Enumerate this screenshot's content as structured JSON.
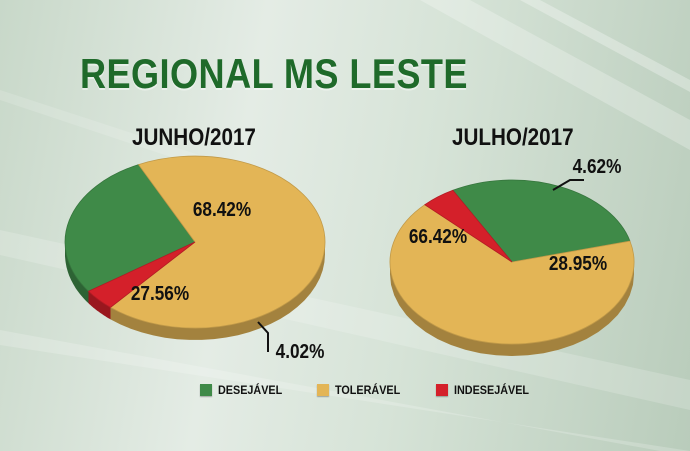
{
  "title": "REGIONAL MS LESTE",
  "colors": {
    "desejavel": "#3f8a48",
    "toleravel": "#e3b556",
    "indesejavel": "#d4202a"
  },
  "legend": [
    {
      "label": "DESEJÁVEL",
      "color": "#3f8a48"
    },
    {
      "label": "TOLERÁVEL",
      "color": "#e3b556"
    },
    {
      "label": "INDESEJÁVEL",
      "color": "#d4202a"
    }
  ],
  "chart_data": [
    {
      "type": "pie",
      "title": "JUNHO/2017",
      "categories": [
        "DESEJÁVEL",
        "TOLERÁVEL",
        "INDESEJÁVEL"
      ],
      "values": [
        27.56,
        68.42,
        4.02
      ],
      "labels": [
        "27.56%",
        "68.42%",
        "4.02%"
      ]
    },
    {
      "type": "pie",
      "title": "JULHO/2017",
      "categories": [
        "DESEJÁVEL",
        "TOLERÁVEL",
        "INDESEJÁVEL"
      ],
      "values": [
        28.95,
        66.42,
        4.62
      ],
      "labels": [
        "28.95%",
        "66.42%",
        "4.62%"
      ]
    }
  ]
}
